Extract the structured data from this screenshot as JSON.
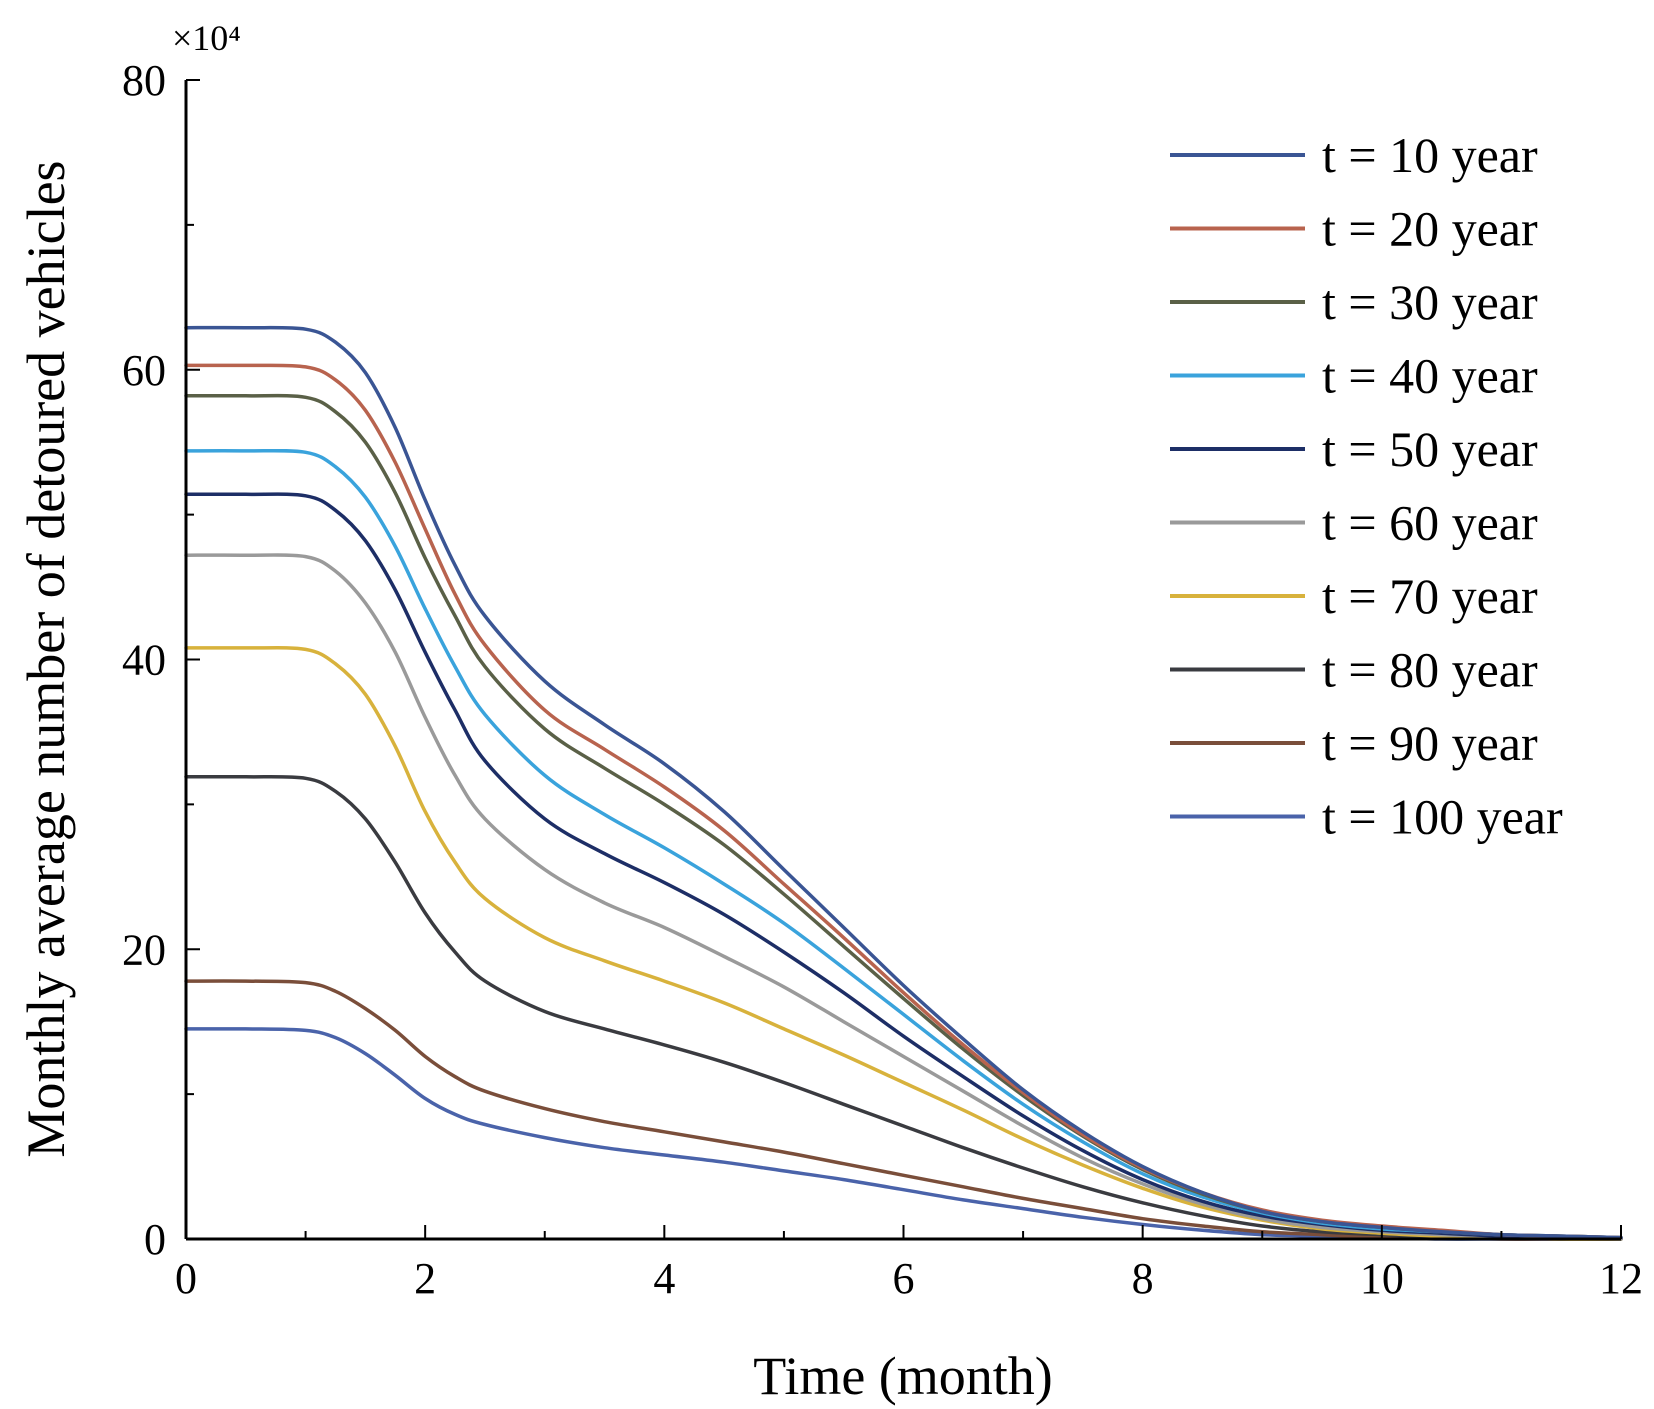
{
  "chart_data": {
    "type": "line",
    "title": "",
    "xlabel": "Time (month)",
    "ylabel": "Monthly average number of detoured vehicles",
    "y_multiplier": "×10⁴",
    "xlim": [
      0,
      12
    ],
    "ylim": [
      0,
      80
    ],
    "xticks": [
      "0",
      "2",
      "4",
      "6",
      "8",
      "10",
      "12"
    ],
    "yticks": [
      "0",
      "20",
      "40",
      "60",
      "80"
    ],
    "legend_position": "top-right",
    "x": [
      0,
      0.5,
      1,
      1.25,
      1.5,
      1.75,
      2,
      2.25,
      2.5,
      3,
      3.5,
      4,
      4.5,
      5,
      5.5,
      6,
      6.5,
      7,
      7.5,
      8,
      8.5,
      9,
      9.5,
      10,
      10.5,
      11,
      11.5,
      12
    ],
    "series": [
      {
        "name": "t = 10 year",
        "color": "#3a5594",
        "values": [
          62.9,
          62.9,
          62.8,
          61.9,
          59.8,
          56.0,
          51.0,
          46.5,
          43.0,
          38.5,
          35.5,
          32.8,
          29.5,
          25.5,
          21.5,
          17.5,
          13.8,
          10.3,
          7.4,
          5.0,
          3.2,
          1.9,
          1.2,
          0.8,
          0.5,
          0.3,
          0.2,
          0.1
        ]
      },
      {
        "name": "t = 20 year",
        "color": "#b8634e",
        "values": [
          60.3,
          60.3,
          60.2,
          59.3,
          57.2,
          53.6,
          49.0,
          44.5,
          41.0,
          36.5,
          33.8,
          31.2,
          28.2,
          24.5,
          20.8,
          17.0,
          13.4,
          10.1,
          7.2,
          4.9,
          3.2,
          2.0,
          1.3,
          0.9,
          0.6,
          0.3,
          0.2,
          0.1
        ]
      },
      {
        "name": "t = 30 year",
        "color": "#5a6047",
        "values": [
          58.2,
          58.2,
          58.1,
          57.1,
          55.0,
          51.5,
          47.0,
          43.0,
          39.5,
          35.2,
          32.5,
          30.0,
          27.2,
          23.8,
          20.2,
          16.6,
          13.1,
          9.9,
          7.1,
          4.8,
          3.1,
          1.9,
          1.2,
          0.8,
          0.5,
          0.3,
          0.2,
          0.1
        ]
      },
      {
        "name": "t = 40 year",
        "color": "#3aa3dc",
        "values": [
          54.4,
          54.4,
          54.3,
          53.3,
          51.2,
          47.8,
          43.5,
          39.5,
          36.2,
          32.0,
          29.3,
          27.0,
          24.5,
          21.8,
          18.7,
          15.5,
          12.3,
          9.3,
          6.7,
          4.5,
          2.9,
          1.8,
          1.1,
          0.7,
          0.5,
          0.3,
          0.2,
          0.1
        ]
      },
      {
        "name": "t = 50 year",
        "color": "#1d2e66",
        "values": [
          51.4,
          51.4,
          51.3,
          50.3,
          48.2,
          44.8,
          40.5,
          36.5,
          33.0,
          29.0,
          26.6,
          24.6,
          22.4,
          19.8,
          17.0,
          14.0,
          11.2,
          8.5,
          6.1,
          4.1,
          2.6,
          1.6,
          1.0,
          0.6,
          0.4,
          0.2,
          0.1,
          0.1
        ]
      },
      {
        "name": "t = 60 year",
        "color": "#9a9a9a",
        "values": [
          47.2,
          47.2,
          47.1,
          46.1,
          43.9,
          40.5,
          36.0,
          32.0,
          29.0,
          25.5,
          23.2,
          21.5,
          19.5,
          17.4,
          15.0,
          12.6,
          10.2,
          7.8,
          5.6,
          3.8,
          2.4,
          1.4,
          0.8,
          0.5,
          0.3,
          0.2,
          0.1,
          0.0
        ]
      },
      {
        "name": "t = 70 year",
        "color": "#d8b23c",
        "values": [
          40.8,
          40.8,
          40.7,
          39.7,
          37.6,
          34.0,
          29.5,
          26.0,
          23.5,
          20.8,
          19.2,
          17.8,
          16.3,
          14.5,
          12.7,
          10.8,
          8.9,
          6.9,
          5.1,
          3.5,
          2.2,
          1.3,
          0.7,
          0.4,
          0.2,
          0.1,
          0.0,
          0.0
        ]
      },
      {
        "name": "t = 80 year",
        "color": "#3a3b40",
        "values": [
          31.9,
          31.9,
          31.8,
          30.9,
          29.0,
          26.0,
          22.5,
          19.8,
          17.8,
          15.7,
          14.5,
          13.4,
          12.2,
          10.8,
          9.3,
          7.8,
          6.3,
          4.9,
          3.6,
          2.5,
          1.6,
          0.9,
          0.5,
          0.3,
          0.1,
          0.1,
          0.0,
          0.0
        ]
      },
      {
        "name": "t = 90 year",
        "color": "#7a4e3a",
        "values": [
          17.8,
          17.8,
          17.7,
          17.1,
          15.9,
          14.4,
          12.6,
          11.2,
          10.2,
          9.0,
          8.1,
          7.4,
          6.7,
          6.0,
          5.2,
          4.4,
          3.6,
          2.8,
          2.1,
          1.4,
          0.9,
          0.5,
          0.3,
          0.1,
          0.1,
          0.0,
          0.0,
          0.0
        ]
      },
      {
        "name": "t = 100 year",
        "color": "#4a63aa",
        "values": [
          14.5,
          14.5,
          14.4,
          13.9,
          12.8,
          11.3,
          9.7,
          8.6,
          7.9,
          7.0,
          6.3,
          5.8,
          5.3,
          4.7,
          4.1,
          3.4,
          2.7,
          2.1,
          1.5,
          1.0,
          0.6,
          0.3,
          0.2,
          0.1,
          0.0,
          0.0,
          0.0,
          0.0
        ]
      }
    ]
  }
}
